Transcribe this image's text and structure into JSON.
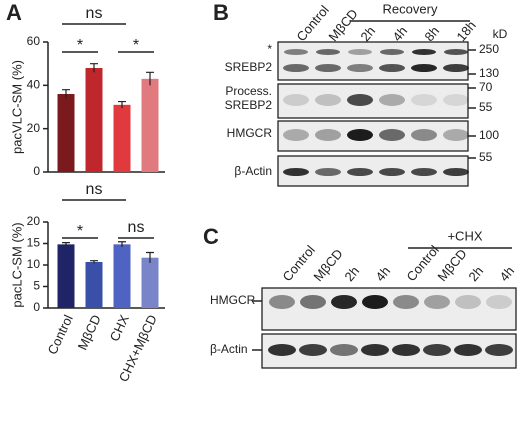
{
  "panels": [
    "A",
    "B",
    "C"
  ],
  "chart_data": [
    {
      "type": "bar",
      "ylabel": "pacVLC-SM (%)",
      "values": [
        36,
        48,
        31,
        43
      ],
      "errors": [
        2,
        2,
        1.5,
        3
      ],
      "colors": [
        "#7a1a1f",
        "#c0272d",
        "#e0393e",
        "#e07a7e"
      ],
      "ylim": [
        0,
        60
      ],
      "yticks": [
        0,
        20,
        40,
        60
      ],
      "annotations": [
        {
          "text": "ns",
          "from": 0,
          "to": 2
        },
        {
          "text": "*",
          "from": 0,
          "to": 1
        },
        {
          "text": "*",
          "from": 2,
          "to": 3
        }
      ]
    },
    {
      "type": "bar",
      "ylabel": "pacLC-SM (%)",
      "categories": [
        "Control",
        "MβCD",
        "CHX",
        "CHX+MβCD"
      ],
      "values": [
        14.8,
        10.7,
        14.8,
        11.7
      ],
      "errors": [
        0.4,
        0.3,
        0.6,
        1.2
      ],
      "colors": [
        "#1f2466",
        "#3a4fa8",
        "#4f63c2",
        "#7a84c8"
      ],
      "ylim": [
        0,
        20
      ],
      "yticks": [
        0,
        5,
        10,
        15,
        20
      ],
      "annotations": [
        {
          "text": "ns",
          "from": 0,
          "to": 2
        },
        {
          "text": "*",
          "from": 0,
          "to": 1
        },
        {
          "text": "ns",
          "from": 2,
          "to": 3
        }
      ]
    }
  ],
  "blot_b": {
    "lanes": [
      "Control",
      "MβCD",
      "2h",
      "4h",
      "8h",
      "18h"
    ],
    "group": "Recovery",
    "labels": [
      "*",
      "SREBP2",
      "Process.",
      "SREBP2",
      "HMGCR",
      "β-Actin"
    ],
    "unit": "kD",
    "markers": [
      "250",
      "130",
      "70",
      "55",
      "100",
      "55"
    ]
  },
  "blot_c": {
    "lanes": [
      "Control",
      "MβCD",
      "2h",
      "4h",
      "Control",
      "MβCD",
      "2h",
      "4h"
    ],
    "group": "+CHX",
    "labels": [
      "HMGCR",
      "β-Actin"
    ]
  }
}
